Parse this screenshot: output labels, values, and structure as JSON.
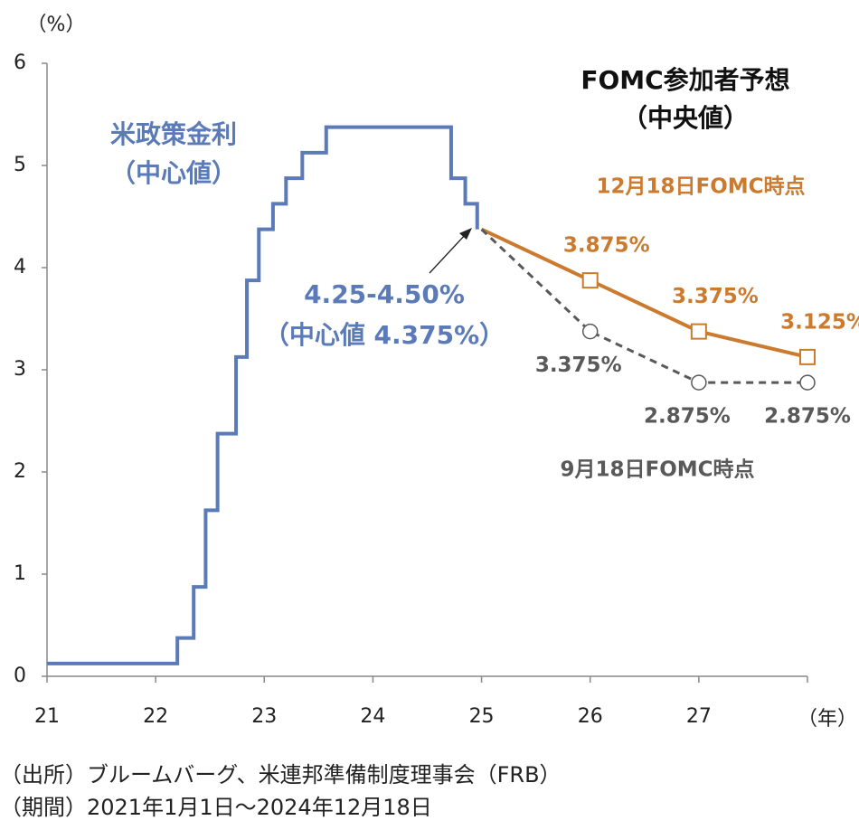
{
  "chart_data": {
    "type": "line",
    "y_label": "（%）",
    "x_label": "（年）",
    "xlim": [
      21,
      28
    ],
    "xticks": [
      21,
      22,
      23,
      24,
      25,
      26,
      27
    ],
    "ylim": [
      0,
      6
    ],
    "yticks": [
      0,
      1,
      2,
      3,
      4,
      5,
      6
    ],
    "series": [
      {
        "name": "米政策金利",
        "color": "#5b7ab8",
        "step": "post",
        "x": [
          21.0,
          22.2,
          22.35,
          22.46,
          22.57,
          22.74,
          22.84,
          22.95,
          23.08,
          23.2,
          23.35,
          23.57,
          24.72,
          24.85,
          24.96
        ],
        "values": [
          0.125,
          0.375,
          0.875,
          1.625,
          2.375,
          3.125,
          3.875,
          4.375,
          4.625,
          4.875,
          5.125,
          5.375,
          4.875,
          4.625,
          4.375
        ]
      },
      {
        "name": "12月18日FOMC時点",
        "color": "#cc7a2e",
        "marker": "square",
        "x": [
          25,
          26,
          27,
          28
        ],
        "values": [
          4.375,
          3.875,
          3.375,
          3.125
        ],
        "value_labels": [
          null,
          "3.875%",
          "3.375%",
          "3.125%"
        ]
      },
      {
        "name": "9月18日FOMC時点",
        "color": "#595959",
        "marker": "circle",
        "dashed": true,
        "x": [
          25,
          26,
          27,
          28
        ],
        "values": [
          4.375,
          3.375,
          2.875,
          2.875
        ],
        "value_labels": [
          null,
          "3.375%",
          "2.875%",
          "2.875%"
        ]
      }
    ],
    "annotations": [
      "（中心値）",
      "FOMC参加者予想",
      "（中央値）",
      "4.25-4.50%",
      "（中心値 4.375%）"
    ],
    "notes": [
      "（出所）ブルームバーグ、米連邦準備制度理事会（FRB）",
      "（期間）2021年1月1日～2024年12月18日"
    ]
  }
}
